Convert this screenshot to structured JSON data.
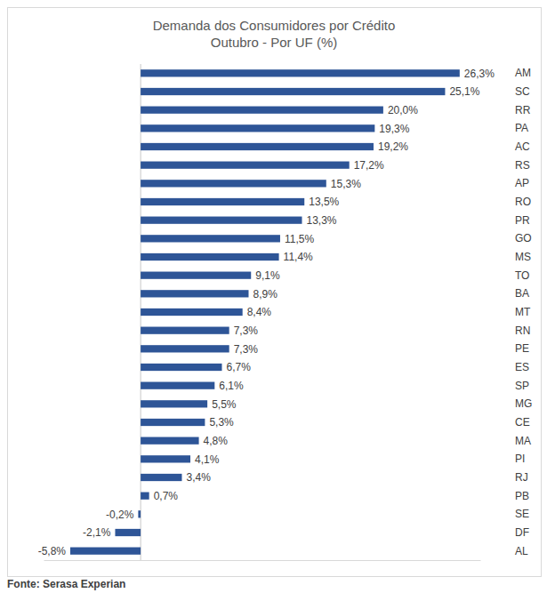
{
  "chart_data": {
    "type": "bar",
    "orientation": "horizontal",
    "title": "Demanda dos Consumidores por Crédito",
    "subtitle": "Outubro - Por UF (%)",
    "source": "Fonte: Serasa Experian",
    "categories": [
      "AM",
      "SC",
      "RR",
      "PA",
      "AC",
      "RS",
      "AP",
      "RO",
      "PR",
      "GO",
      "MS",
      "TO",
      "BA",
      "MT",
      "RN",
      "PE",
      "ES",
      "SP",
      "MG",
      "CE",
      "MA",
      "PI",
      "RJ",
      "PB",
      "SE",
      "DF",
      "AL"
    ],
    "values": [
      26.3,
      25.1,
      20.0,
      19.3,
      19.2,
      17.2,
      15.3,
      13.5,
      13.3,
      11.5,
      11.4,
      9.1,
      8.9,
      8.4,
      7.3,
      7.3,
      6.7,
      6.1,
      5.5,
      5.3,
      4.8,
      4.1,
      3.4,
      0.7,
      -0.2,
      -2.1,
      -5.8
    ],
    "value_labels": [
      "26,3%",
      "25,1%",
      "20,0%",
      "19,3%",
      "19,2%",
      "17,2%",
      "15,3%",
      "13,5%",
      "13,3%",
      "11,5%",
      "11,4%",
      "9,1%",
      "8,9%",
      "8,4%",
      "7,3%",
      "7,3%",
      "6,7%",
      "6,1%",
      "5,5%",
      "5,3%",
      "4,8%",
      "4,1%",
      "3,4%",
      "0,7%",
      "-0,2%",
      "-2,1%",
      "-5,8%"
    ],
    "data_labels": true,
    "color": "#2e5597",
    "xlim": [
      -8,
      28
    ],
    "xticks": [
      0
    ],
    "grid": true,
    "tick_labels": "y"
  }
}
